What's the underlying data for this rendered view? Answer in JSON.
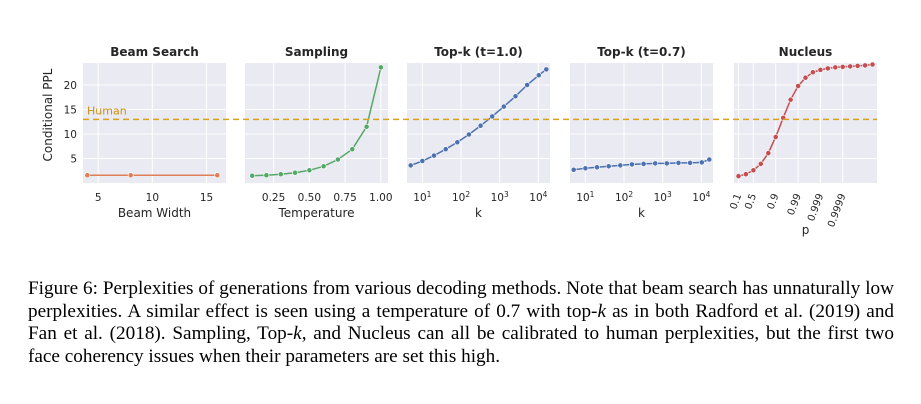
{
  "colors": {
    "panel_bg": "#eaeaf2",
    "grid": "#ffffff",
    "human_line": "#d9a21c",
    "human_label": "#c98f10"
  },
  "chart_data": {
    "type": "line",
    "ylabel": "Conditional PPL",
    "ylim": [
      0,
      24.5
    ],
    "yticks": [
      5,
      10,
      15,
      20
    ],
    "reference": {
      "label": "Human",
      "value": 13
    },
    "panels": [
      {
        "id": "beam",
        "title": "Beam Search",
        "xlabel": "Beam Width",
        "color": "#e07e55",
        "xscale": "linear",
        "xlim": [
          3.6,
          16.8
        ],
        "xticks": [
          {
            "v": 5,
            "t": "5"
          },
          {
            "v": 10,
            "t": "10"
          },
          {
            "v": 15,
            "t": "15"
          }
        ],
        "x": [
          4,
          8,
          16
        ],
        "y": [
          1.6,
          1.6,
          1.6
        ]
      },
      {
        "id": "sampling",
        "title": "Sampling",
        "xlabel": "Temperature",
        "color": "#55a868",
        "xscale": "linear",
        "xlim": [
          0.05,
          1.05
        ],
        "xticks": [
          {
            "v": 0.25,
            "t": "0.25"
          },
          {
            "v": 0.5,
            "t": "0.50"
          },
          {
            "v": 0.75,
            "t": "0.75"
          },
          {
            "v": 1.0,
            "t": "1.00"
          }
        ],
        "x": [
          0.1,
          0.2,
          0.3,
          0.4,
          0.5,
          0.6,
          0.7,
          0.8,
          0.9,
          1.0
        ],
        "y": [
          1.5,
          1.6,
          1.8,
          2.1,
          2.6,
          3.4,
          4.8,
          6.9,
          11.5,
          23.6
        ]
      },
      {
        "id": "topk1",
        "title": "Top-k (t=1.0)",
        "xlabel": "k",
        "color": "#4c72b0",
        "xscale": "log",
        "xlim": [
          4,
          20000
        ],
        "xticks": [
          {
            "v": 10,
            "t": "10",
            "sup": "1"
          },
          {
            "v": 100,
            "t": "10",
            "sup": "2"
          },
          {
            "v": 1000,
            "t": "10",
            "sup": "3"
          },
          {
            "v": 10000,
            "t": "10",
            "sup": "4"
          }
        ],
        "x": [
          5,
          10,
          20,
          40,
          80,
          160,
          320,
          640,
          1280,
          2560,
          5120,
          10240,
          16000
        ],
        "y": [
          3.6,
          4.5,
          5.6,
          6.9,
          8.3,
          9.9,
          11.7,
          13.6,
          15.6,
          17.7,
          20.0,
          22.0,
          23.2
        ]
      },
      {
        "id": "topk07",
        "title": "Top-k (t=0.7)",
        "xlabel": "k",
        "color": "#4c72b0",
        "xscale": "log",
        "xlim": [
          4,
          20000
        ],
        "xticks": [
          {
            "v": 10,
            "t": "10",
            "sup": "1"
          },
          {
            "v": 100,
            "t": "10",
            "sup": "2"
          },
          {
            "v": 1000,
            "t": "10",
            "sup": "3"
          },
          {
            "v": 10000,
            "t": "10",
            "sup": "4"
          }
        ],
        "x": [
          5,
          10,
          20,
          40,
          80,
          160,
          320,
          640,
          1280,
          2560,
          5120,
          10240,
          16000
        ],
        "y": [
          2.7,
          3.0,
          3.2,
          3.4,
          3.6,
          3.8,
          3.9,
          4.0,
          4.0,
          4.1,
          4.1,
          4.2,
          4.8
        ]
      },
      {
        "id": "nucleus",
        "title": "Nucleus",
        "xlabel": "p",
        "color": "#c44e52",
        "xscale": "index",
        "xlim": [
          -0.6,
          18.6
        ],
        "xticks": [
          {
            "v": 0,
            "t": "0.1"
          },
          {
            "v": 2,
            "t": "0.5"
          },
          {
            "v": 5,
            "t": "0.9"
          },
          {
            "v": 8,
            "t": "0.99"
          },
          {
            "v": 11,
            "t": "0.999"
          },
          {
            "v": 14,
            "t": "0.9999"
          }
        ],
        "tick_rotation": 70,
        "x": [
          0,
          1,
          2,
          3,
          4,
          5,
          6,
          7,
          8,
          9,
          10,
          11,
          12,
          13,
          14,
          15,
          16,
          17,
          18
        ],
        "y": [
          1.4,
          1.8,
          2.6,
          3.9,
          6.1,
          9.4,
          13.3,
          17.0,
          19.8,
          21.5,
          22.6,
          23.1,
          23.4,
          23.6,
          23.7,
          23.8,
          23.9,
          24.0,
          24.2
        ]
      }
    ]
  },
  "caption": {
    "label": "Figure 6:",
    "parts": [
      "Perplexities of generations from various decoding methods. Note that beam search has unnaturally low perplexities. A similar effect is seen using a temperature of 0.7 with top-",
      "k",
      " as in both Radford et al. (2019) and Fan et al. (2018). Sampling, Top-",
      "k",
      ", and Nucleus can all be calibrated to human perplexities, but the first two face coherency issues when their parameters are set this high."
    ]
  }
}
